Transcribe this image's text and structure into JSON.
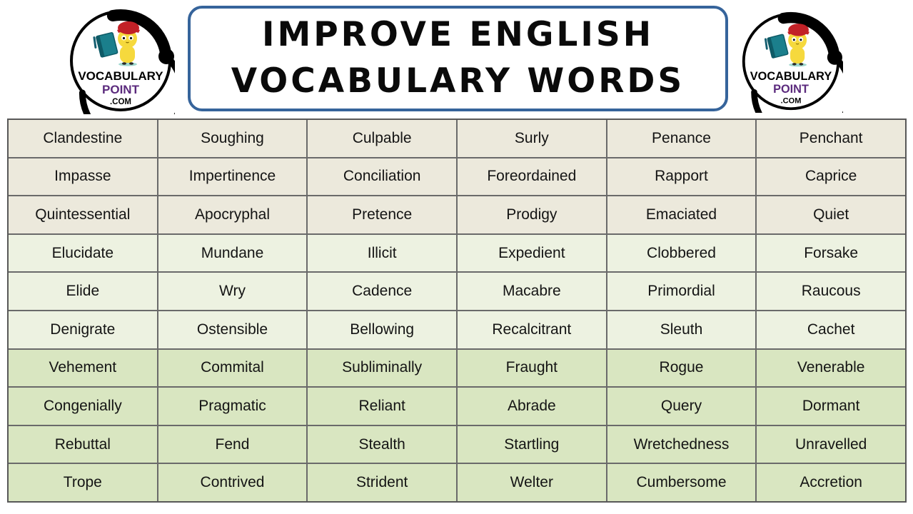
{
  "branding": {
    "line1": "VOCABULARY",
    "line2": "POINT",
    "line3": ".COM"
  },
  "header": {
    "title_line1": "IMPROVE ENGLISH",
    "title_line2": "VOCABULARY WORDS"
  },
  "table": {
    "rows": [
      [
        "Clandestine",
        "Soughing",
        "Culpable",
        "Surly",
        "Penance",
        "Penchant"
      ],
      [
        "Impasse",
        "Impertinence",
        "Conciliation",
        "Foreordained",
        "Rapport",
        "Caprice"
      ],
      [
        "Quintessential",
        "Apocryphal",
        "Pretence",
        "Prodigy",
        "Emaciated",
        "Quiet"
      ],
      [
        "Elucidate",
        "Mundane",
        "Illicit",
        "Expedient",
        "Clobbered",
        "Forsake"
      ],
      [
        "Elide",
        "Wry",
        "Cadence",
        "Macabre",
        "Primordial",
        "Raucous"
      ],
      [
        "Denigrate",
        "Ostensible",
        "Bellowing",
        "Recalcitrant",
        "Sleuth",
        "Cachet"
      ],
      [
        "Vehement",
        "Commital",
        "Subliminally",
        "Fraught",
        "Rogue",
        "Venerable"
      ],
      [
        "Congenially",
        "Pragmatic",
        "Reliant",
        "Abrade",
        "Query",
        "Dormant"
      ],
      [
        "Rebuttal",
        "Fend",
        "Stealth",
        "Startling",
        "Wretchedness",
        "Unravelled"
      ],
      [
        "Trope",
        "Contrived",
        "Strident",
        "Welter",
        "Cumbersome",
        "Accretion"
      ]
    ],
    "row_bands": [
      0,
      0,
      0,
      1,
      1,
      1,
      2,
      2,
      2,
      2
    ],
    "band_colors": [
      "#ECE9DC",
      "#EDF2E1",
      "#D9E6C1"
    ]
  },
  "colors": {
    "title_border": "#36649B",
    "grid_line": "#6A6A6A",
    "table_outer_border": "#585858",
    "text": "#141414",
    "logo_point_purple": "#5B2A7D",
    "mascot_yellow": "#F6D93D",
    "mascot_cap_red": "#C22127",
    "book_teal": "#1B7F8C"
  }
}
